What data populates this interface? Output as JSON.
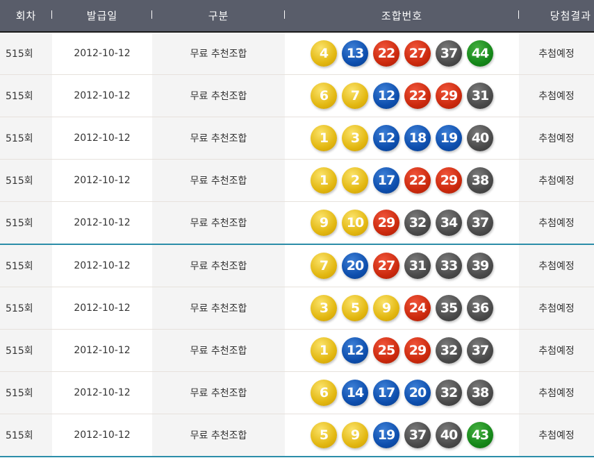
{
  "headers": [
    "회차",
    "발급일",
    "구분",
    "조합번호",
    "당첨결과"
  ],
  "rows": [
    {
      "round": "515회",
      "date": "2012-10-12",
      "type": "무료 추천조합",
      "numbers": [
        4,
        13,
        22,
        27,
        37,
        44
      ],
      "result": "추첨예정"
    },
    {
      "round": "515회",
      "date": "2012-10-12",
      "type": "무료 추천조합",
      "numbers": [
        6,
        7,
        12,
        22,
        29,
        31
      ],
      "result": "추첨예정"
    },
    {
      "round": "515회",
      "date": "2012-10-12",
      "type": "무료 추천조합",
      "numbers": [
        1,
        3,
        12,
        18,
        19,
        40
      ],
      "result": "추첨예정"
    },
    {
      "round": "515회",
      "date": "2012-10-12",
      "type": "무료 추천조합",
      "numbers": [
        1,
        2,
        17,
        22,
        29,
        38
      ],
      "result": "추첨예정"
    },
    {
      "round": "515회",
      "date": "2012-10-12",
      "type": "무료 추천조합",
      "numbers": [
        9,
        10,
        29,
        32,
        34,
        37
      ],
      "result": "추첨예정"
    },
    {
      "round": "515회",
      "date": "2012-10-12",
      "type": "무료 추천조합",
      "numbers": [
        7,
        20,
        27,
        31,
        33,
        39
      ],
      "result": "추첨예정"
    },
    {
      "round": "515회",
      "date": "2012-10-12",
      "type": "무료 추천조합",
      "numbers": [
        3,
        5,
        9,
        24,
        35,
        36
      ],
      "result": "추첨예정"
    },
    {
      "round": "515회",
      "date": "2012-10-12",
      "type": "무료 추천조합",
      "numbers": [
        1,
        12,
        25,
        29,
        32,
        37
      ],
      "result": "추첨예정"
    },
    {
      "round": "515회",
      "date": "2012-10-12",
      "type": "무료 추천조합",
      "numbers": [
        6,
        14,
        17,
        20,
        32,
        38
      ],
      "result": "추첨예정"
    },
    {
      "round": "515회",
      "date": "2012-10-12",
      "type": "무료 추천조합",
      "numbers": [
        5,
        9,
        19,
        37,
        40,
        43
      ],
      "result": "추첨예정"
    }
  ],
  "colors": {
    "header": "#595d6a",
    "group_line": "#2a8ca8",
    "ball_1_10": "#e3b812",
    "ball_11_20": "#0e4fae",
    "ball_21_30": "#cc2a0e",
    "ball_31_40": "#4b4b4b",
    "ball_41_45": "#16881a"
  }
}
